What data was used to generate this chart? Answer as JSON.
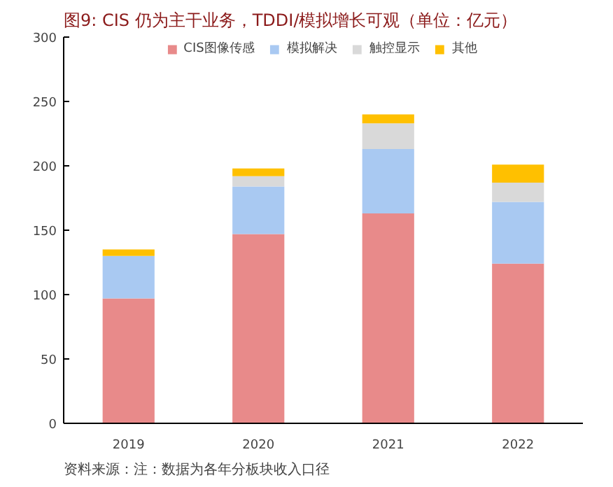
{
  "chart_data": {
    "type": "bar",
    "title": "图9:  CIS 仍为主干业务，TDDI/模拟增长可观（单位：亿元）",
    "categories": [
      "2019",
      "2020",
      "2021",
      "2022"
    ],
    "stacked": true,
    "series": [
      {
        "name": "CIS图像传感",
        "color": "#e88a8a",
        "values": [
          97,
          147,
          163,
          124
        ]
      },
      {
        "name": "模拟解决",
        "color": "#a9c9f2",
        "values": [
          33,
          37,
          50,
          48
        ]
      },
      {
        "name": "触控显示",
        "color": "#d9d9d9",
        "values": [
          null,
          8,
          20,
          15
        ]
      },
      {
        "name": "其他",
        "color": "#ffc000",
        "values": [
          5,
          6,
          7,
          14
        ]
      }
    ],
    "ylim": [
      0,
      300
    ],
    "yticks": [
      0,
      50,
      100,
      150,
      200,
      250,
      300
    ],
    "grid": false,
    "legend": "top",
    "annotations": [
      "资料来源：注：数据为各年分板块收入口径"
    ]
  }
}
